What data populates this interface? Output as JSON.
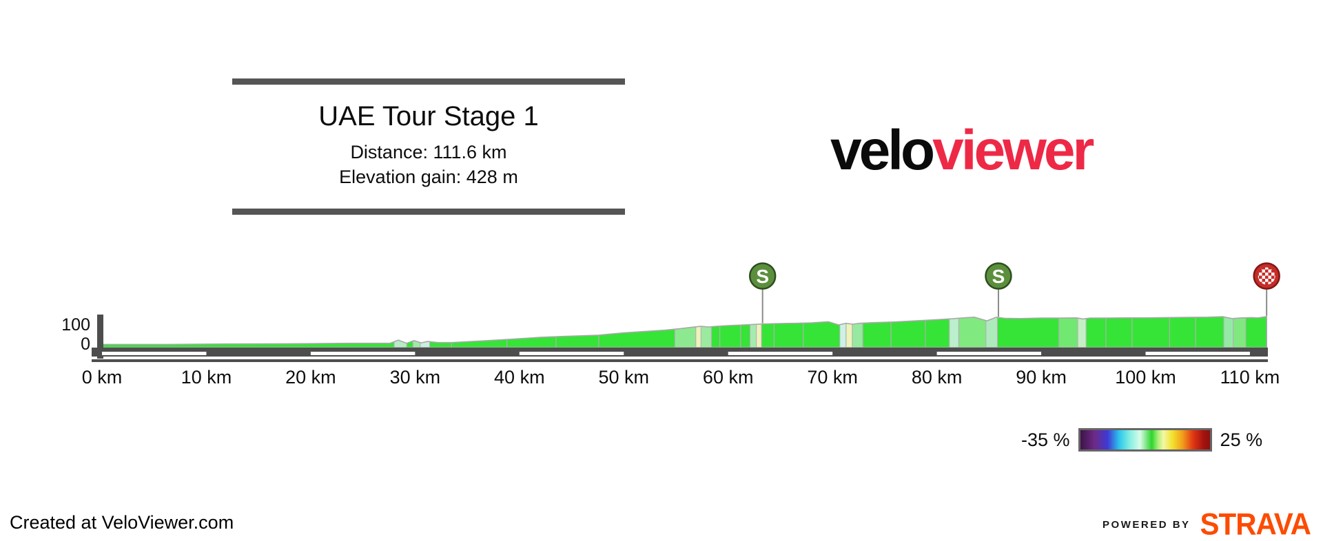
{
  "header": {
    "title": "UAE Tour Stage 1",
    "distance_label": "Distance: 111.6 km",
    "elevation_label": "Elevation gain: 428 m"
  },
  "logo": {
    "black_part": "velo",
    "red_part": "viewer",
    "red_color": "#ee2946"
  },
  "legend": {
    "min_label": "-35 %",
    "max_label": "25 %"
  },
  "footer": {
    "created_at": "Created at VeloViewer.com",
    "powered_by": "POWERED BY",
    "strava": "STRAVA",
    "strava_color": "#fc4c02"
  },
  "chart_data": {
    "type": "area",
    "title": "UAE Tour Stage 1",
    "distance_km": 111.6,
    "elevation_gain_m": 428,
    "x_axis": {
      "unit": "km",
      "ticks": [
        0,
        10,
        20,
        30,
        40,
        50,
        60,
        70,
        80,
        90,
        100,
        110
      ],
      "tick_suffix": " km"
    },
    "y_axis": {
      "unit": "m",
      "ticks": [
        0,
        100
      ]
    },
    "profile_points_km_m": [
      [
        0,
        14
      ],
      [
        6,
        14
      ],
      [
        12,
        16
      ],
      [
        18,
        17
      ],
      [
        24,
        19
      ],
      [
        27.6,
        19
      ],
      [
        28.4,
        33
      ],
      [
        29.2,
        19
      ],
      [
        29.9,
        31
      ],
      [
        30.6,
        21
      ],
      [
        31.2,
        27
      ],
      [
        32.2,
        22
      ],
      [
        33.5,
        22
      ],
      [
        35,
        26
      ],
      [
        37,
        31
      ],
      [
        39.5,
        38
      ],
      [
        42,
        45
      ],
      [
        44,
        49
      ],
      [
        46,
        52
      ],
      [
        47.6,
        55
      ],
      [
        48.8,
        60
      ],
      [
        50,
        65
      ],
      [
        52,
        71
      ],
      [
        54,
        77
      ],
      [
        55.5,
        84
      ],
      [
        56.6,
        90
      ],
      [
        57.4,
        94
      ],
      [
        58.1,
        91
      ],
      [
        58.9,
        94
      ],
      [
        60,
        97
      ],
      [
        61.5,
        100
      ],
      [
        63.3,
        104
      ],
      [
        65,
        106
      ],
      [
        66.5,
        107
      ],
      [
        68,
        109
      ],
      [
        69.6,
        114
      ],
      [
        70.6,
        100
      ],
      [
        71.3,
        107
      ],
      [
        71.9,
        103
      ],
      [
        72.6,
        107
      ],
      [
        74,
        110
      ],
      [
        76,
        113
      ],
      [
        78,
        118
      ],
      [
        80,
        123
      ],
      [
        81.5,
        127
      ],
      [
        82.9,
        132
      ],
      [
        83.6,
        134
      ],
      [
        84.8,
        118
      ],
      [
        85.7,
        134
      ],
      [
        86.5,
        129
      ],
      [
        88,
        128
      ],
      [
        90,
        130
      ],
      [
        91.7,
        130
      ],
      [
        93.4,
        131
      ],
      [
        94,
        126
      ],
      [
        94.7,
        130
      ],
      [
        96.2,
        130
      ],
      [
        98,
        131
      ],
      [
        100,
        131
      ],
      [
        102,
        132
      ],
      [
        104,
        133
      ],
      [
        106,
        134
      ],
      [
        107.4,
        136
      ],
      [
        108.3,
        128
      ],
      [
        109.2,
        131
      ],
      [
        110.2,
        132
      ],
      [
        110.8,
        131
      ],
      [
        111.6,
        137
      ]
    ],
    "segment_bands": [
      {
        "from_km": 28.0,
        "to_km": 29.2,
        "color": "#b6edc6"
      },
      {
        "from_km": 29.8,
        "to_km": 30.5,
        "color": "#9eeaa8"
      },
      {
        "from_km": 30.5,
        "to_km": 31.4,
        "color": "#c9f0de"
      },
      {
        "from_km": 54.9,
        "to_km": 56.9,
        "color": "#8de98f"
      },
      {
        "from_km": 56.9,
        "to_km": 57.4,
        "color": "#eef3ba"
      },
      {
        "from_km": 57.4,
        "to_km": 58.4,
        "color": "#9bea9f"
      },
      {
        "from_km": 62.1,
        "to_km": 62.7,
        "color": "#a5ebaf"
      },
      {
        "from_km": 62.7,
        "to_km": 63.2,
        "color": "#eef3ba"
      },
      {
        "from_km": 70.7,
        "to_km": 71.3,
        "color": "#cbf2e5"
      },
      {
        "from_km": 71.3,
        "to_km": 71.9,
        "color": "#eef3ba"
      },
      {
        "from_km": 71.9,
        "to_km": 72.9,
        "color": "#96e99f"
      },
      {
        "from_km": 81.2,
        "to_km": 82.1,
        "color": "#bbefcd"
      },
      {
        "from_km": 82.1,
        "to_km": 84.7,
        "color": "#80e980"
      },
      {
        "from_km": 84.7,
        "to_km": 85.8,
        "color": "#adebbd"
      },
      {
        "from_km": 91.7,
        "to_km": 93.5,
        "color": "#71e871"
      },
      {
        "from_km": 93.5,
        "to_km": 94.3,
        "color": "#c4f0c4"
      },
      {
        "from_km": 107.5,
        "to_km": 108.4,
        "color": "#94eaa4"
      },
      {
        "from_km": 108.4,
        "to_km": 109.6,
        "color": "#7fe97f"
      }
    ],
    "segment_boundaries_km": [
      33.5,
      38.8,
      43.5,
      47.6,
      59.2,
      61.2,
      64.4,
      67.2,
      75.6,
      78.9,
      96.2,
      98.7,
      102.3,
      104.8
    ],
    "markers": [
      {
        "kind": "sprint",
        "label": "S",
        "km": 63.3
      },
      {
        "kind": "sprint",
        "label": "S",
        "km": 85.9
      },
      {
        "kind": "finish",
        "label": "",
        "km": 111.6
      }
    ],
    "colors": {
      "profile_fill": "#35e437",
      "profile_stroke": "#a8a8a8",
      "seam": "#b2b2b2",
      "axis_bar": "#4d4d4d",
      "stripe": "#ffffff",
      "tick_text": "#0d0d0d",
      "marker_stem": "#8a8a8a",
      "sprint_fill": "#5c8f3d",
      "sprint_stroke": "#2e4d1e",
      "sprint_text": "#ffffff",
      "finish_fill": "#c52d28",
      "finish_stroke": "#801713",
      "finish_checker": "#ffffff"
    },
    "layout_hints": {
      "grid": false,
      "legend_position": "bottom-right",
      "x_range_km": [
        0,
        111.6
      ]
    }
  }
}
